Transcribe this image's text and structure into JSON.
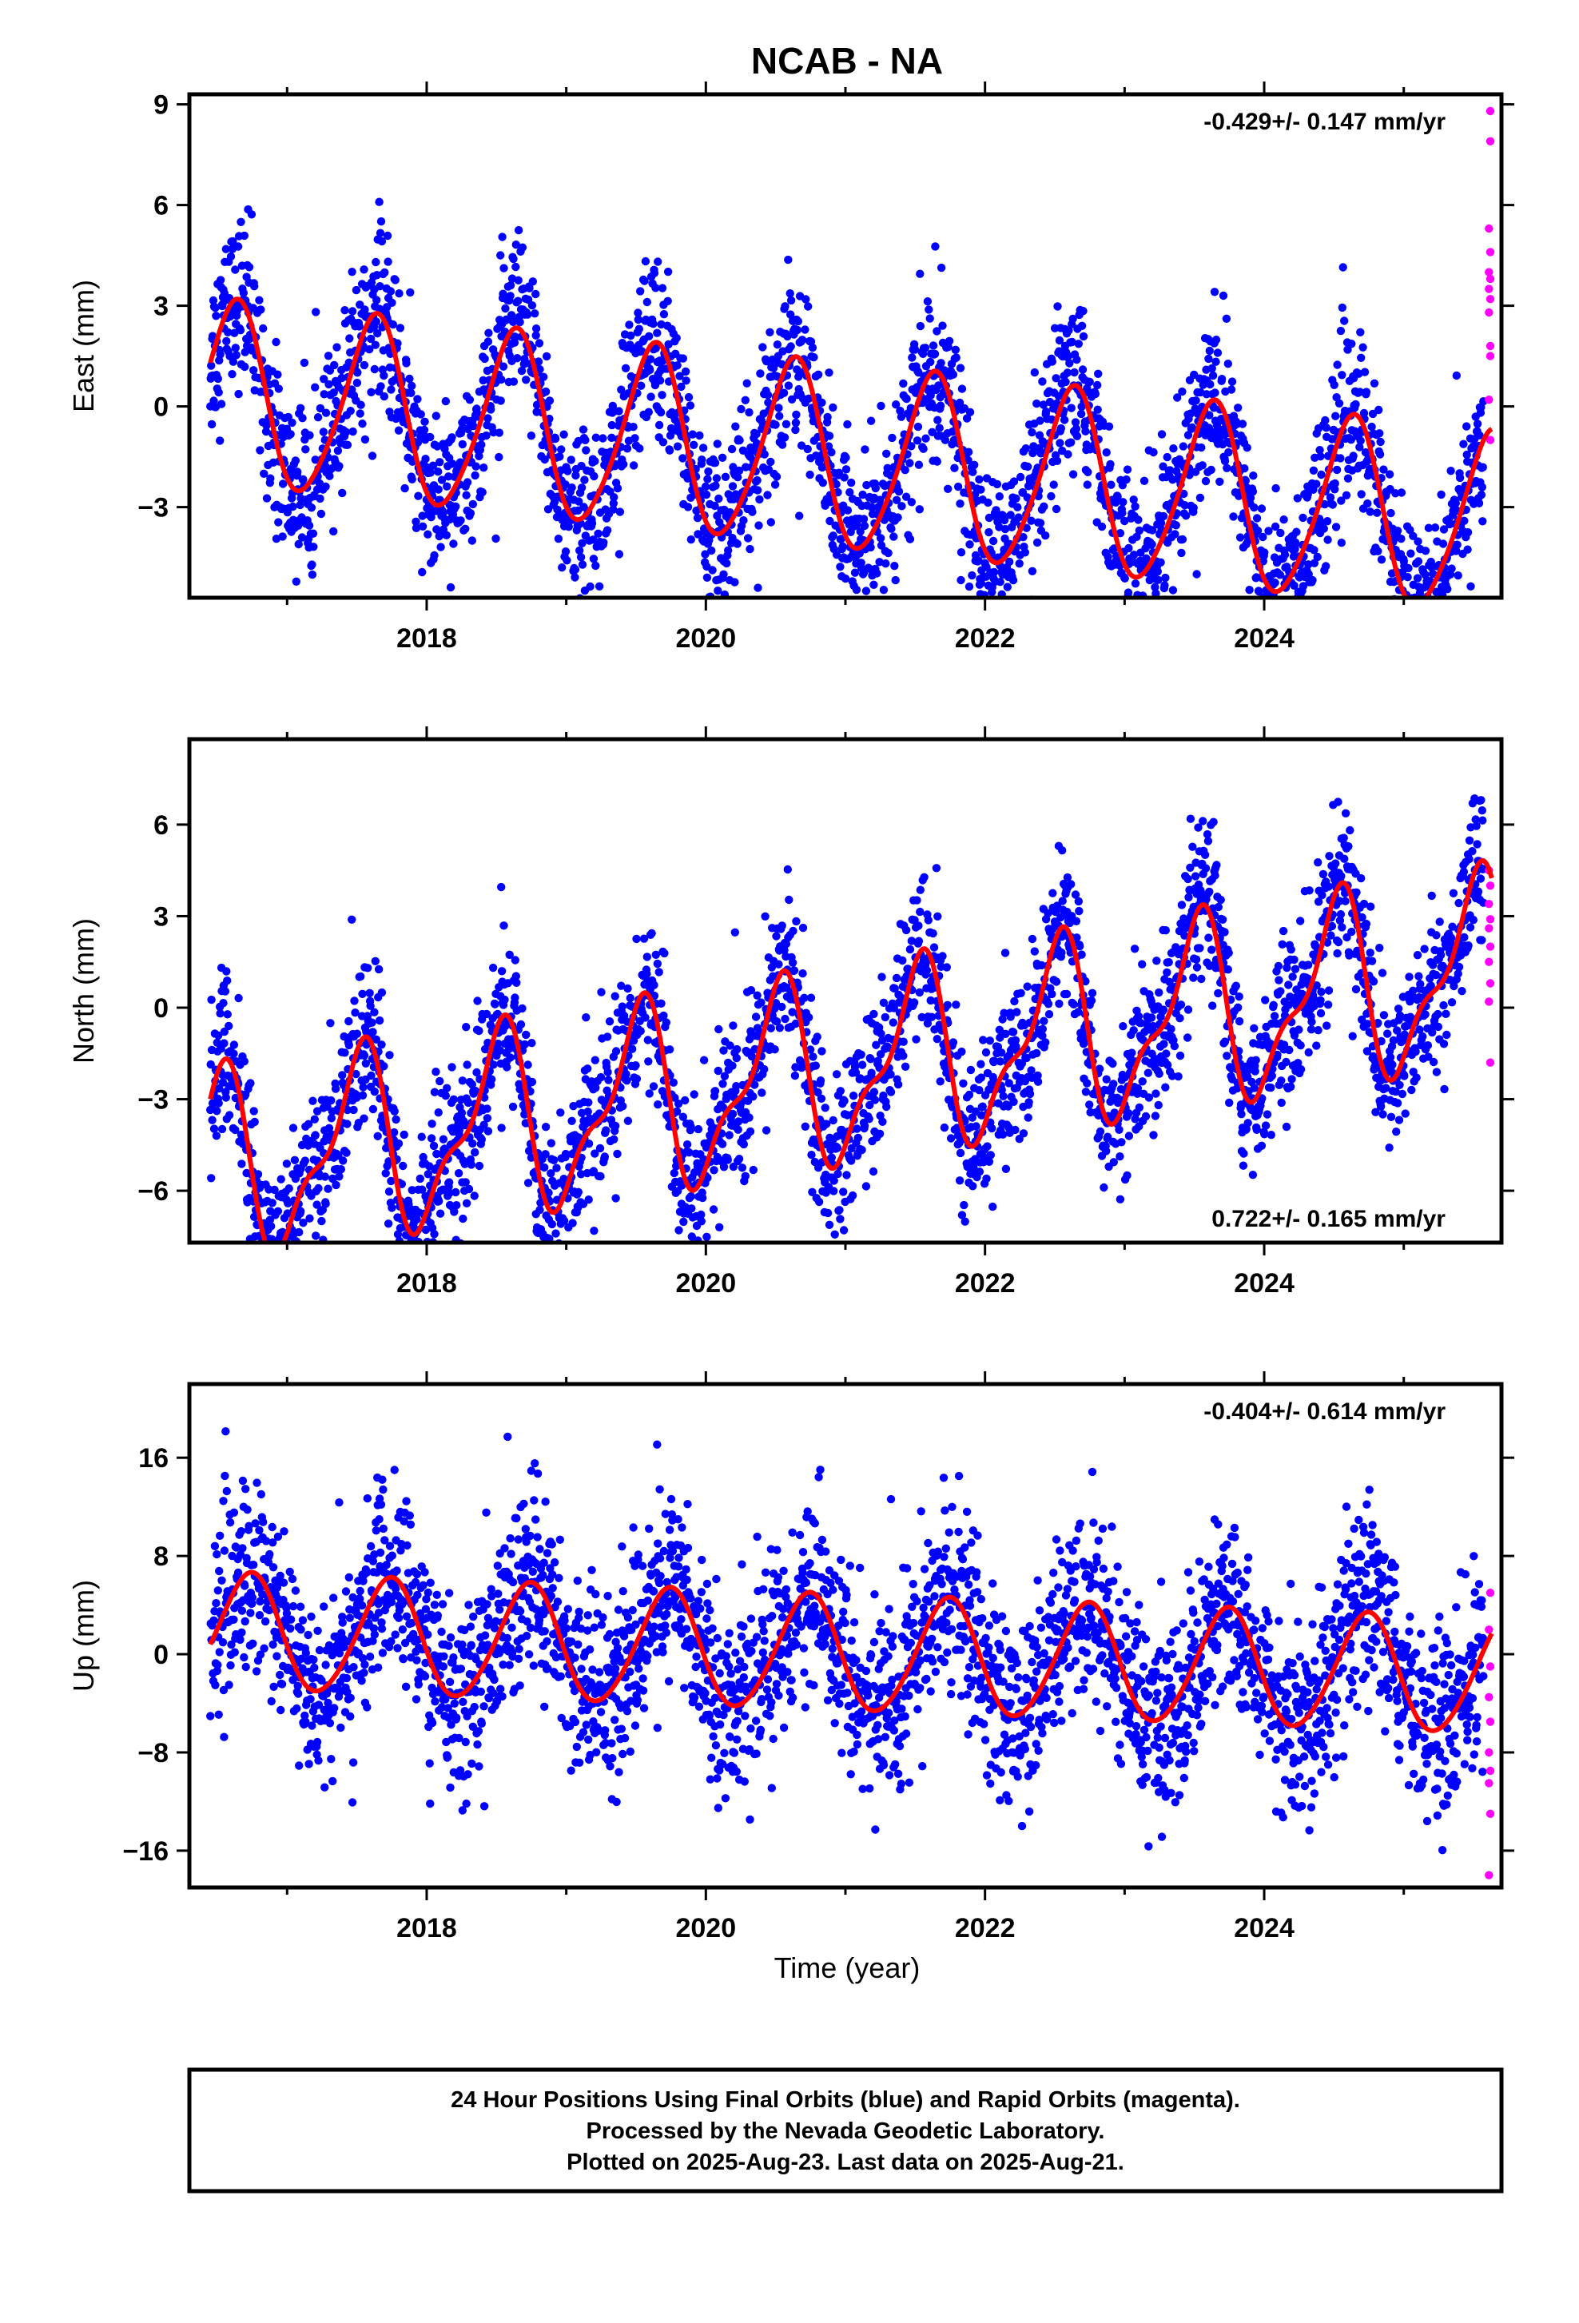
{
  "title": "NCAB - NA",
  "xlabel": "Time (year)",
  "footer": {
    "line1": "24 Hour Positions Using Final Orbits (blue) and Rapid Orbits (magenta).",
    "line2": "Processed by the Nevada Geodetic Laboratory.",
    "line3": "Plotted on 2025-Aug-23. Last data on 2025-Aug-21."
  },
  "colors": {
    "final": "#0000ff",
    "rapid": "#ff00ff",
    "model": "#ff0000",
    "axis": "#000000"
  },
  "chart_data": [
    {
      "type": "scatter",
      "component": "east",
      "ylabel": "East (mm)",
      "rate": "-0.429+/- 0.147 mm/yr",
      "rate_position": "top-right",
      "xlim": [
        2016.3,
        2025.7
      ],
      "ylim": [
        -5.7,
        9.3
      ],
      "yticks": [
        9,
        6,
        3,
        0,
        -3
      ],
      "xticks": [
        2018,
        2020,
        2022,
        2024
      ],
      "data_start": 2016.45,
      "data_end": 2025.63,
      "model": {
        "trend_mm_per_yr": -0.429,
        "value_at_2016.45": 1.3,
        "annual_amplitude": 2.7,
        "annual_peak_phase": 0.62,
        "semiannual_amplitude": 0.35,
        "semiannual_peak_phase": 0.2
      },
      "scatter_sd": 1.25,
      "rapid_points": [
        [
          2025.62,
          8.8
        ],
        [
          2025.62,
          7.9
        ],
        [
          2025.61,
          5.3
        ],
        [
          2025.62,
          4.6
        ],
        [
          2025.61,
          4.0
        ],
        [
          2025.62,
          3.8
        ],
        [
          2025.61,
          3.5
        ],
        [
          2025.62,
          3.2
        ],
        [
          2025.61,
          2.8
        ],
        [
          2025.62,
          1.8
        ],
        [
          2025.62,
          1.5
        ],
        [
          2025.61,
          0.2
        ],
        [
          2025.62,
          -1.0
        ]
      ]
    },
    {
      "type": "scatter",
      "component": "north",
      "ylabel": "North (mm)",
      "rate": "0.722+/- 0.165 mm/yr",
      "rate_position": "bottom-right",
      "xlim": [
        2016.3,
        2025.7
      ],
      "ylim": [
        -7.7,
        8.8
      ],
      "yticks": [
        6,
        3,
        0,
        -3,
        -6
      ],
      "xticks": [
        2018,
        2020,
        2022,
        2024
      ],
      "data_start": 2016.45,
      "data_end": 2025.63,
      "model": {
        "trend_mm_per_yr": 0.722,
        "value_at_2016.45": -3.0,
        "annual_amplitude": 2.8,
        "annual_peak_phase": 0.5,
        "semiannual_amplitude": 1.1,
        "semiannual_peak_phase": 0.1
      },
      "scatter_sd": 1.3,
      "rapid_points": [
        [
          2025.61,
          4.5
        ],
        [
          2025.62,
          4.0
        ],
        [
          2025.61,
          3.4
        ],
        [
          2025.62,
          2.9
        ],
        [
          2025.61,
          2.6
        ],
        [
          2025.62,
          2.0
        ],
        [
          2025.61,
          1.5
        ],
        [
          2025.62,
          0.8
        ],
        [
          2025.61,
          0.2
        ],
        [
          2025.62,
          -1.8
        ]
      ]
    },
    {
      "type": "scatter",
      "component": "up",
      "ylabel": "Up (mm)",
      "rate": "-0.404+/- 0.614 mm/yr",
      "rate_position": "top-right",
      "xlim": [
        2016.3,
        2025.7
      ],
      "ylim": [
        -19,
        22
      ],
      "yticks": [
        16,
        8,
        0,
        -8,
        -16
      ],
      "xticks": [
        2018,
        2020,
        2022,
        2024
      ],
      "data_start": 2016.45,
      "data_end": 2025.63,
      "model": {
        "trend_mm_per_yr": -0.404,
        "value_at_2016.45": 0.8,
        "annual_amplitude": 4.7,
        "annual_peak_phase": 0.73,
        "semiannual_amplitude": 0.4,
        "semiannual_peak_phase": 0.3
      },
      "scatter_sd": 3.8,
      "rapid_points": [
        [
          2025.62,
          5.0
        ],
        [
          2025.61,
          2.0
        ],
        [
          2025.62,
          -1.0
        ],
        [
          2025.61,
          -3.5
        ],
        [
          2025.62,
          -5.5
        ],
        [
          2025.61,
          -8.0
        ],
        [
          2025.62,
          -9.5
        ],
        [
          2025.61,
          -10.5
        ],
        [
          2025.62,
          -13.0
        ],
        [
          2025.61,
          -18.0
        ]
      ]
    }
  ]
}
